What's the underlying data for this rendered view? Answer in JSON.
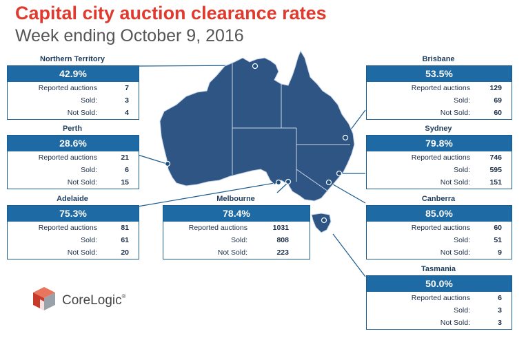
{
  "header": {
    "title": "Capital city auction clearance rates",
    "subtitle": "Week ending October 9, 2016"
  },
  "logo": {
    "name": "CoreLogic",
    "mark": "®"
  },
  "colors": {
    "title": "#e03a2f",
    "card_header": "#1d6aa5",
    "map_fill": "#2f5584"
  },
  "row_labels": {
    "reported": "Reported auctions",
    "sold": "Sold:",
    "not_sold": "Not Sold:"
  },
  "cities": {
    "northern_territory": {
      "name": "Northern Territory",
      "rate": "42.9%",
      "reported": "7",
      "sold": "3",
      "not_sold": "4"
    },
    "perth": {
      "name": "Perth",
      "rate": "28.6%",
      "reported": "21",
      "sold": "6",
      "not_sold": "15"
    },
    "adelaide": {
      "name": "Adelaide",
      "rate": "75.3%",
      "reported": "81",
      "sold": "61",
      "not_sold": "20"
    },
    "melbourne": {
      "name": "Melbourne",
      "rate": "78.4%",
      "reported": "1031",
      "sold": "808",
      "not_sold": "223"
    },
    "brisbane": {
      "name": "Brisbane",
      "rate": "53.5%",
      "reported": "129",
      "sold": "69",
      "not_sold": "60"
    },
    "sydney": {
      "name": "Sydney",
      "rate": "79.8%",
      "reported": "746",
      "sold": "595",
      "not_sold": "151"
    },
    "canberra": {
      "name": "Canberra",
      "rate": "85.0%",
      "reported": "60",
      "sold": "51",
      "not_sold": "9"
    },
    "tasmania": {
      "name": "Tasmania",
      "rate": "50.0%",
      "reported": "6",
      "sold": "3",
      "not_sold": "3"
    }
  }
}
